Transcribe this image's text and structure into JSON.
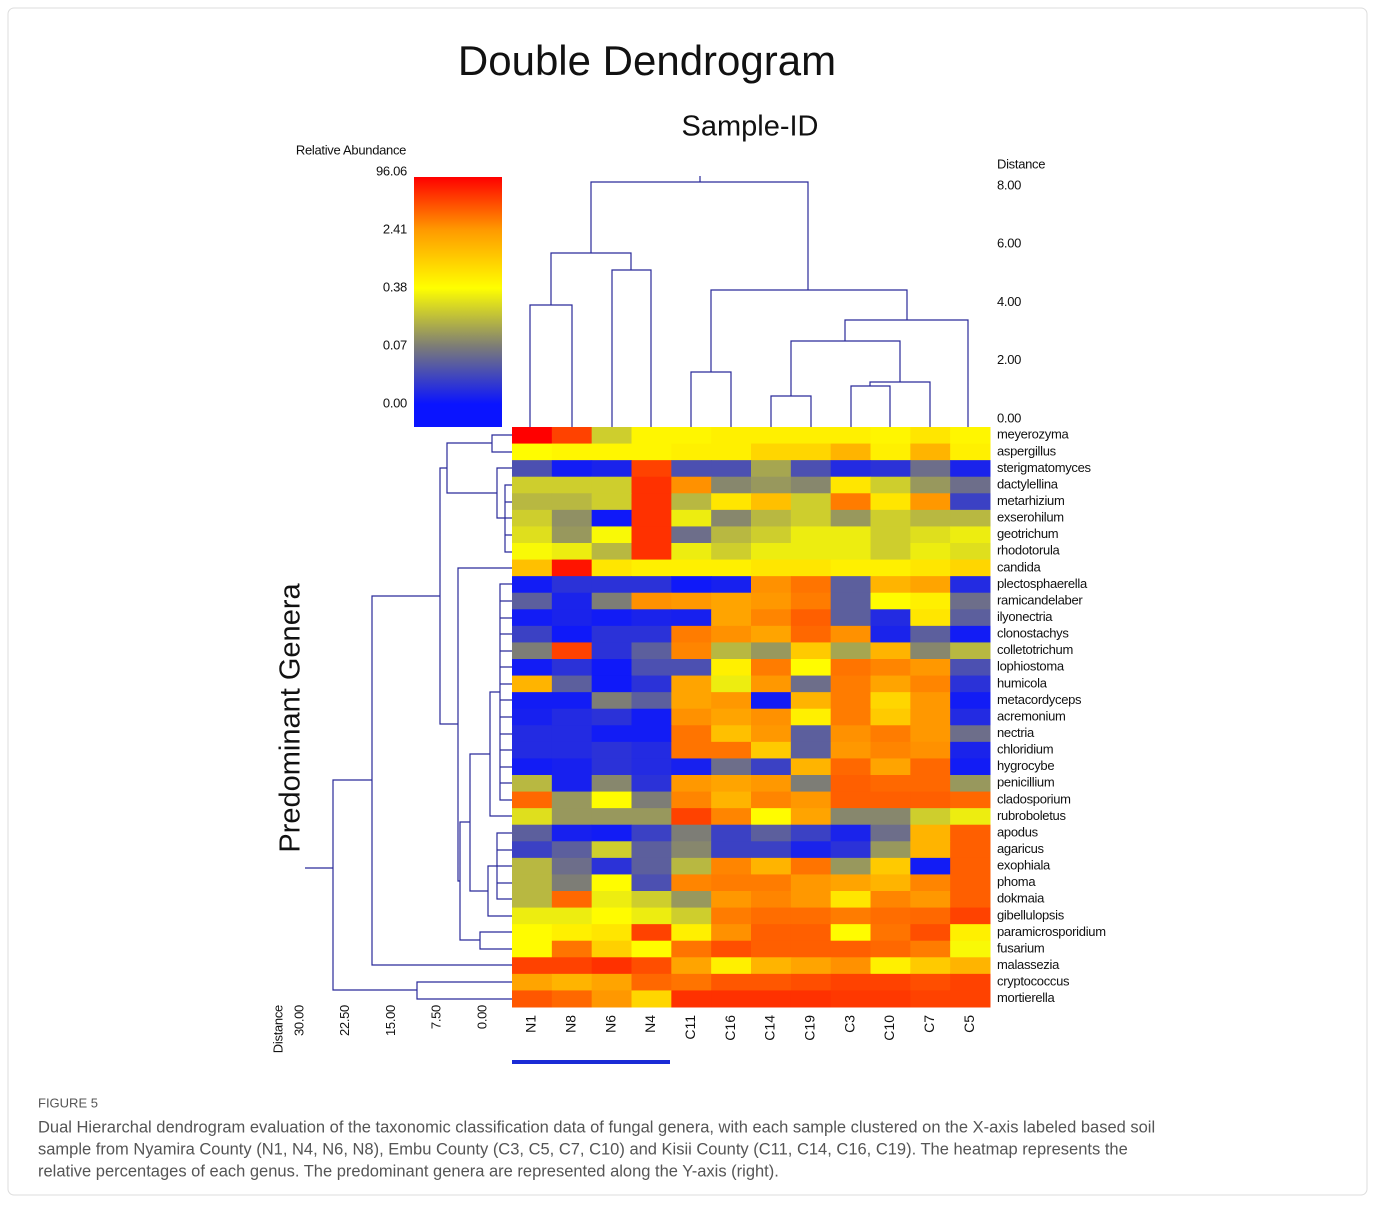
{
  "chart_data": {
    "type": "heatmap",
    "title": "Double Dendrogram",
    "subtitle": "Sample-ID",
    "y_label": "Predominant Genera",
    "colorbar_label": "Relative Abundance",
    "colorbar_ticks": [
      {
        "value": 0,
        "label": "0.00"
      },
      0.07,
      0.38,
      2.41,
      96.06
    ],
    "top_axis": {
      "label": "Distance",
      "lim": [
        0,
        8
      ],
      "ticks": [
        {
          "value": 8,
          "label": "8.00"
        },
        {
          "value": 6,
          "label": "6.00"
        },
        {
          "value": 4,
          "label": "4.00"
        },
        {
          "value": 2,
          "label": "2.00"
        },
        {
          "value": 0,
          "label": "0.00"
        }
      ]
    },
    "left_axis": {
      "label": "Distance",
      "lim": [
        0,
        30
      ],
      "ticks": [
        {
          "value": 30,
          "label": "30.00"
        },
        {
          "value": 22.5,
          "label": "22.50"
        },
        {
          "value": 15,
          "label": "15.00"
        },
        {
          "value": 7.5,
          "label": "7.50"
        },
        {
          "value": 0,
          "label": "0.00"
        }
      ]
    },
    "columns": [
      "N1",
      "N8",
      "N6",
      "N4",
      "C11",
      "C16",
      "C14",
      "C19",
      "C3",
      "C10",
      "C7",
      "C5"
    ],
    "rows": [
      "meyerozyma",
      "aspergillus",
      "sterigmatomyces",
      "dactylellina",
      "metarhizium",
      "exserohilum",
      "geotrichum",
      "rhodotorula",
      "candida",
      "plectosphaerella",
      "ramicandelaber",
      "ilyonectria",
      "clonostachys",
      "colletotrichum",
      "lophiostoma",
      "humicola",
      "metacordyceps",
      "acremonium",
      "nectria",
      "chloridium",
      "hygrocybe",
      "penicillium",
      "cladosporium",
      "rubroboletus",
      "apodus",
      "agaricus",
      "exophiala",
      "phoma",
      "dokmaia",
      "gibellulopsis",
      "paramicrosporidium",
      "fusarium",
      "malassezia",
      "cryptococcus",
      "mortierella"
    ],
    "values": [
      [
        96,
        20,
        0.2,
        0.45,
        0.45,
        0.5,
        0.5,
        0.5,
        0.5,
        0.45,
        0.6,
        0.45
      ],
      [
        0.4,
        0.45,
        0.45,
        0.45,
        0.5,
        0.5,
        0.8,
        0.8,
        1.5,
        0.5,
        1.5,
        0.5
      ],
      [
        0.04,
        0.005,
        0.01,
        20,
        0.04,
        0.04,
        0.12,
        0.04,
        0.015,
        0.02,
        0.06,
        0.01
      ],
      [
        0.2,
        0.2,
        0.2,
        30,
        3,
        0.08,
        0.1,
        0.08,
        0.6,
        0.2,
        0.1,
        0.06
      ],
      [
        0.15,
        0.15,
        0.2,
        30,
        0.15,
        0.6,
        1.2,
        0.2,
        5,
        0.6,
        2.5,
        0.03
      ],
      [
        0.2,
        0.09,
        0.003,
        30,
        0.3,
        0.08,
        0.15,
        0.2,
        0.1,
        0.2,
        0.15,
        0.15
      ],
      [
        0.25,
        0.1,
        0.35,
        30,
        0.06,
        0.15,
        0.2,
        0.3,
        0.3,
        0.2,
        0.25,
        0.3
      ],
      [
        0.35,
        0.3,
        0.15,
        30,
        0.3,
        0.2,
        0.3,
        0.3,
        0.3,
        0.2,
        0.3,
        0.25
      ],
      [
        1.2,
        60,
        0.6,
        0.5,
        0.5,
        0.5,
        0.6,
        0.6,
        0.5,
        0.5,
        0.6,
        0.8
      ],
      [
        0.005,
        0.02,
        0.02,
        0.02,
        0.003,
        0.008,
        3,
        6,
        0.05,
        1.5,
        2,
        0.015
      ],
      [
        0.05,
        0.01,
        0.07,
        3,
        2.5,
        2,
        2.5,
        5,
        0.05,
        0.4,
        0.5,
        0.06
      ],
      [
        0.005,
        0.01,
        0.005,
        0.01,
        0.008,
        2,
        4,
        10,
        0.05,
        0.015,
        0.6,
        0.05
      ],
      [
        0.03,
        0.003,
        0.02,
        0.02,
        5,
        3,
        2,
        8,
        3,
        0.01,
        0.05,
        0.005
      ],
      [
        0.07,
        20,
        0.02,
        0.05,
        4,
        0.15,
        0.1,
        1,
        0.12,
        1.5,
        0.08,
        0.15
      ],
      [
        0.005,
        0.02,
        0.003,
        0.04,
        0.04,
        0.5,
        5,
        0.4,
        6,
        4,
        2.5,
        0.04
      ],
      [
        1.5,
        0.05,
        0.003,
        0.02,
        2,
        0.3,
        2.5,
        0.06,
        5,
        2,
        4,
        0.02
      ],
      [
        0.005,
        0.005,
        0.07,
        0.05,
        2,
        2.5,
        0.005,
        1.5,
        5,
        0.8,
        2.5,
        0.005
      ],
      [
        0.008,
        0.015,
        0.02,
        0.005,
        3,
        2,
        3,
        0.5,
        5,
        1,
        2.5,
        0.015
      ],
      [
        0.015,
        0.015,
        0.005,
        0.005,
        6,
        1.2,
        2.5,
        0.05,
        3,
        5,
        2.5,
        0.06
      ],
      [
        0.015,
        0.015,
        0.02,
        0.015,
        6,
        6,
        1,
        0.05,
        2.5,
        4,
        3,
        0.01
      ],
      [
        0.005,
        0.008,
        0.02,
        0.015,
        0.008,
        0.06,
        0.03,
        1.5,
        8,
        2,
        8,
        0.005
      ],
      [
        0.15,
        0.008,
        0.08,
        0.02,
        2.5,
        2,
        2.5,
        0.07,
        10,
        8,
        8,
        0.1
      ],
      [
        8,
        0.1,
        0.4,
        0.07,
        4,
        1.5,
        4,
        2.5,
        10,
        10,
        10,
        8
      ],
      [
        0.25,
        0.1,
        0.1,
        0.1,
        20,
        4,
        0.4,
        2,
        0.08,
        0.08,
        0.2,
        0.3
      ],
      [
        0.05,
        0.008,
        0.005,
        0.03,
        0.07,
        0.03,
        0.05,
        0.03,
        0.01,
        0.06,
        1.5,
        10
      ],
      [
        0.03,
        0.05,
        0.2,
        0.05,
        0.08,
        0.03,
        0.03,
        0.01,
        0.02,
        0.1,
        1.5,
        10
      ],
      [
        0.15,
        0.06,
        0.02,
        0.05,
        0.15,
        4,
        1.5,
        6,
        0.1,
        1,
        0.005,
        10
      ],
      [
        0.15,
        0.07,
        0.4,
        0.04,
        4,
        5,
        5,
        2.5,
        2,
        1.5,
        4,
        10
      ],
      [
        0.15,
        8,
        0.3,
        0.2,
        0.1,
        2.5,
        4,
        2.5,
        0.6,
        4,
        2.5,
        10
      ],
      [
        0.3,
        0.3,
        0.4,
        0.3,
        0.2,
        5,
        7,
        7,
        5,
        7,
        8,
        20
      ],
      [
        0.4,
        0.5,
        0.6,
        20,
        0.5,
        3,
        10,
        10,
        0.4,
        6,
        15,
        0.5
      ],
      [
        0.4,
        6,
        0.9,
        0.4,
        6,
        15,
        10,
        10,
        10,
        8,
        5,
        0.35
      ],
      [
        20,
        20,
        30,
        15,
        2,
        0.5,
        1.5,
        2,
        3,
        0.5,
        1,
        1.5
      ],
      [
        2,
        1.5,
        2,
        8,
        6,
        12,
        12,
        15,
        20,
        20,
        15,
        20
      ],
      [
        12,
        8,
        2.5,
        0.8,
        30,
        30,
        30,
        30,
        25,
        25,
        20,
        20
      ]
    ]
  },
  "caption": {
    "label": "FIGURE 5",
    "lines": [
      "Dual Hierarchal dendrogram evaluation of the taxonomic classification data of fungal genera, with each sample clustered on the X-axis labeled based soil",
      "sample from Nyamira County (N1, N4, N6, N8), Embu County (C3, C5, C7, C10) and Kisii County (C11, C14, C16, C19). The heatmap represents the",
      "relative percentages of each genus. The predominant genera are represented along the Y-axis (right)."
    ]
  }
}
